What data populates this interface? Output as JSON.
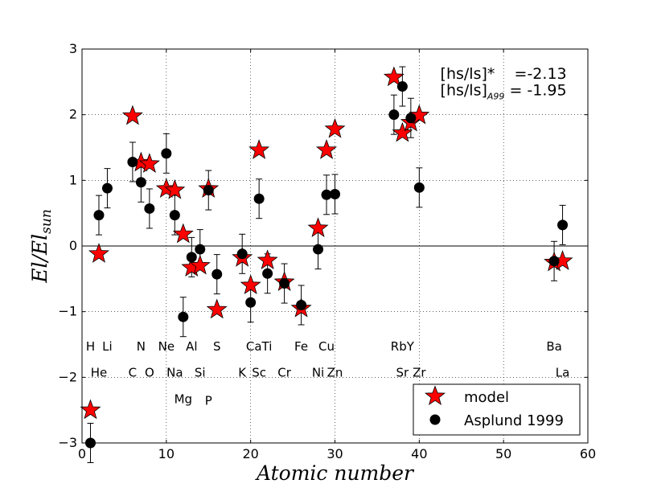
{
  "chart_data": {
    "type": "scatter",
    "title": "",
    "xlabel_main": "Atomic number",
    "ylabel_main": "El/El",
    "ylabel_sub": "sun",
    "xlim": [
      0,
      60
    ],
    "ylim": [
      -3,
      3
    ],
    "x_ticks": [
      0,
      10,
      20,
      30,
      40,
      50,
      60
    ],
    "y_ticks": [
      -3,
      -2,
      -1,
      0,
      1,
      2,
      3
    ],
    "grid": "dotted",
    "colors": {
      "model": "#ff0000",
      "asplund": "#000000"
    },
    "series": [
      {
        "name": "model",
        "marker": "star",
        "points": [
          {
            "x": 1,
            "y": -2.5
          },
          {
            "x": 2,
            "y": -0.12
          },
          {
            "x": 6,
            "y": 1.98
          },
          {
            "x": 7,
            "y": 1.27
          },
          {
            "x": 8,
            "y": 1.25
          },
          {
            "x": 10,
            "y": 0.87
          },
          {
            "x": 11,
            "y": 0.85
          },
          {
            "x": 12,
            "y": 0.18
          },
          {
            "x": 13,
            "y": -0.33
          },
          {
            "x": 14,
            "y": -0.3
          },
          {
            "x": 15,
            "y": 0.87
          },
          {
            "x": 16,
            "y": -0.97
          },
          {
            "x": 19,
            "y": -0.18
          },
          {
            "x": 20,
            "y": -0.6
          },
          {
            "x": 21,
            "y": 1.46
          },
          {
            "x": 22,
            "y": -0.22
          },
          {
            "x": 24,
            "y": -0.55
          },
          {
            "x": 26,
            "y": -0.95
          },
          {
            "x": 28,
            "y": 0.27
          },
          {
            "x": 29,
            "y": 1.46
          },
          {
            "x": 30,
            "y": 1.78
          },
          {
            "x": 37,
            "y": 2.57
          },
          {
            "x": 38,
            "y": 1.72
          },
          {
            "x": 39,
            "y": 1.88
          },
          {
            "x": 40,
            "y": 1.99
          },
          {
            "x": 56,
            "y": -0.25
          },
          {
            "x": 57,
            "y": -0.23
          }
        ]
      },
      {
        "name": "Asplund 1999",
        "marker": "circle",
        "points": [
          {
            "x": 1,
            "y": -3.0,
            "err": 0.3
          },
          {
            "x": 2,
            "y": 0.47,
            "err": 0.3
          },
          {
            "x": 3,
            "y": 0.88,
            "err": 0.3
          },
          {
            "x": 6,
            "y": 1.28,
            "err": 0.3
          },
          {
            "x": 7,
            "y": 0.97,
            "err": 0.3
          },
          {
            "x": 8,
            "y": 0.57,
            "err": 0.3
          },
          {
            "x": 10,
            "y": 1.41,
            "err": 0.3
          },
          {
            "x": 11,
            "y": 0.47,
            "err": 0.3
          },
          {
            "x": 12,
            "y": -1.08,
            "err": 0.3
          },
          {
            "x": 13,
            "y": -0.17,
            "err": 0.3
          },
          {
            "x": 14,
            "y": -0.05,
            "err": 0.3
          },
          {
            "x": 15,
            "y": 0.85,
            "err": 0.3
          },
          {
            "x": 16,
            "y": -0.43,
            "err": 0.3
          },
          {
            "x": 19,
            "y": -0.12,
            "err": 0.3
          },
          {
            "x": 20,
            "y": -0.86,
            "err": 0.3
          },
          {
            "x": 21,
            "y": 0.72,
            "err": 0.3
          },
          {
            "x": 22,
            "y": -0.42,
            "err": 0.3
          },
          {
            "x": 24,
            "y": -0.57,
            "err": 0.3
          },
          {
            "x": 26,
            "y": -0.9,
            "err": 0.3
          },
          {
            "x": 28,
            "y": -0.05,
            "err": 0.3
          },
          {
            "x": 29,
            "y": 0.78,
            "err": 0.3
          },
          {
            "x": 30,
            "y": 0.79,
            "err": 0.3
          },
          {
            "x": 37,
            "y": 2.0,
            "err": 0.3
          },
          {
            "x": 38,
            "y": 2.43,
            "err": 0.3
          },
          {
            "x": 39,
            "y": 1.95,
            "err": 0.3
          },
          {
            "x": 40,
            "y": 0.89,
            "err": 0.3
          },
          {
            "x": 56,
            "y": -0.23,
            "err": 0.3
          },
          {
            "x": 57,
            "y": 0.32,
            "err": 0.3
          }
        ]
      }
    ],
    "element_labels": [
      {
        "text": "H",
        "x": 1,
        "y": -1.53
      },
      {
        "text": "Li",
        "x": 3,
        "y": -1.53
      },
      {
        "text": "N",
        "x": 7,
        "y": -1.53
      },
      {
        "text": "Ne",
        "x": 10,
        "y": -1.53
      },
      {
        "text": "Al",
        "x": 13,
        "y": -1.53
      },
      {
        "text": "S",
        "x": 16,
        "y": -1.53
      },
      {
        "text": "CaTi",
        "x": 21,
        "y": -1.53
      },
      {
        "text": "Fe",
        "x": 26,
        "y": -1.53
      },
      {
        "text": "Cu",
        "x": 29,
        "y": -1.53
      },
      {
        "text": "RbY",
        "x": 38,
        "y": -1.53
      },
      {
        "text": "Ba",
        "x": 56,
        "y": -1.53
      },
      {
        "text": "He",
        "x": 2,
        "y": -1.93
      },
      {
        "text": "C",
        "x": 6,
        "y": -1.93
      },
      {
        "text": "O",
        "x": 8,
        "y": -1.93
      },
      {
        "text": "Na",
        "x": 11,
        "y": -1.93
      },
      {
        "text": "Si",
        "x": 14,
        "y": -1.93
      },
      {
        "text": "K",
        "x": 19,
        "y": -1.93
      },
      {
        "text": "Sc",
        "x": 21,
        "y": -1.93
      },
      {
        "text": "Cr",
        "x": 24,
        "y": -1.93
      },
      {
        "text": "Ni",
        "x": 28,
        "y": -1.93
      },
      {
        "text": "Zn",
        "x": 30,
        "y": -1.93
      },
      {
        "text": "Sr",
        "x": 38,
        "y": -1.93
      },
      {
        "text": "Zr",
        "x": 40,
        "y": -1.93
      },
      {
        "text": "La",
        "x": 57,
        "y": -1.93
      },
      {
        "text": "Mg",
        "x": 12,
        "y": -2.33
      },
      {
        "text": "P",
        "x": 15,
        "y": -2.36
      }
    ],
    "annotations": [
      {
        "text": "[hs/ls]*    =-2.13",
        "x": 42.5,
        "y": 2.62
      },
      {
        "text": "[hs/ls]",
        "sub": "A99",
        "value": "= -1.95",
        "x": 42.5,
        "y": 2.37
      }
    ],
    "legend": {
      "position": "bottom-right",
      "entries": [
        "model",
        "Asplund 1999"
      ]
    }
  }
}
